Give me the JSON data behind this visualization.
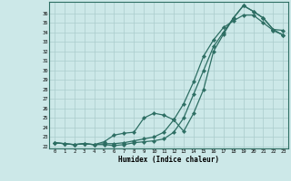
{
  "xlabel": "Humidex (Indice chaleur)",
  "bg_color": "#cce8e8",
  "grid_color": "#aacccc",
  "line_color": "#2d6e63",
  "x_values": [
    0,
    1,
    2,
    3,
    4,
    5,
    6,
    7,
    8,
    9,
    10,
    11,
    12,
    13,
    14,
    15,
    16,
    17,
    18,
    19,
    20,
    21,
    22,
    23
  ],
  "line1": [
    22.4,
    22.3,
    22.2,
    22.3,
    22.2,
    22.2,
    22.1,
    22.2,
    22.4,
    22.5,
    22.6,
    22.8,
    23.5,
    25.0,
    27.5,
    30.0,
    32.5,
    34.0,
    35.5,
    36.8,
    36.2,
    35.5,
    34.3,
    33.7
  ],
  "line2": [
    22.4,
    22.3,
    22.2,
    22.3,
    22.2,
    22.5,
    23.2,
    23.4,
    23.5,
    25.0,
    25.5,
    25.3,
    24.8,
    23.6,
    25.5,
    28.0,
    32.0,
    33.8,
    35.5,
    36.8,
    36.2,
    35.5,
    34.3,
    34.2
  ],
  "line3": [
    22.4,
    22.3,
    22.2,
    22.3,
    22.2,
    22.3,
    22.3,
    22.4,
    22.6,
    22.8,
    23.0,
    23.5,
    24.8,
    26.5,
    28.8,
    31.5,
    33.2,
    34.5,
    35.2,
    35.8,
    35.8,
    35.0,
    34.2,
    33.7
  ],
  "ylim": [
    21.8,
    37.2
  ],
  "xlim": [
    -0.5,
    23.5
  ],
  "yticks": [
    22,
    23,
    24,
    25,
    26,
    27,
    28,
    29,
    30,
    31,
    32,
    33,
    34,
    35,
    36
  ],
  "xticks": [
    0,
    1,
    2,
    3,
    4,
    5,
    6,
    7,
    8,
    9,
    10,
    11,
    12,
    13,
    14,
    15,
    16,
    17,
    18,
    19,
    20,
    21,
    22,
    23
  ]
}
